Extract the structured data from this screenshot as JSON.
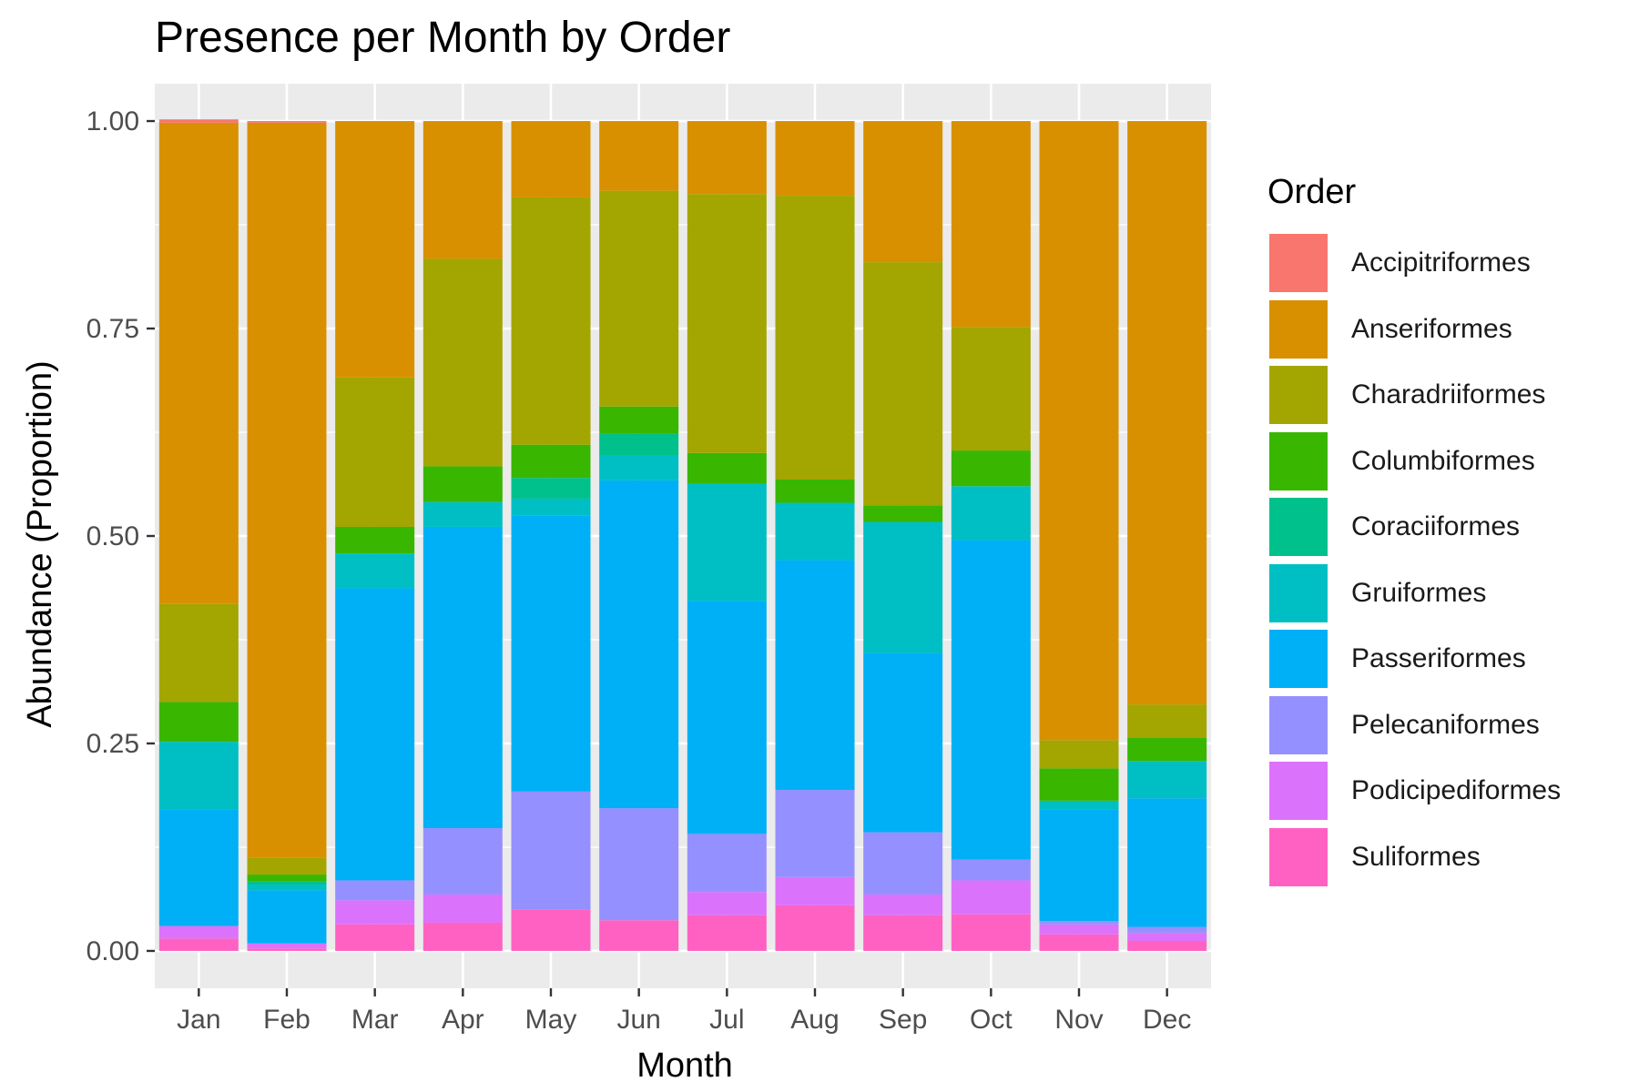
{
  "chart_data": {
    "type": "bar",
    "stacked": true,
    "title": "Presence per Month by Order",
    "xlabel": "Month",
    "ylabel": "Abundance (Proportion)",
    "ylim": [
      -0.045,
      1.045
    ],
    "yticks": [
      "0.00",
      "0.25",
      "0.50",
      "0.75",
      "1.00"
    ],
    "ytick_values": [
      0,
      0.25,
      0.5,
      0.75,
      1
    ],
    "grid": true,
    "legend_position": "right",
    "legend_title": "Order",
    "categories": [
      "Jan",
      "Feb",
      "Mar",
      "Apr",
      "May",
      "Jun",
      "Jul",
      "Aug",
      "Sep",
      "Oct",
      "Nov",
      "Dec"
    ],
    "series": [
      {
        "name": "Suliformes",
        "color": "#FF61C3",
        "values": [
          0.015,
          0.003,
          0.032,
          0.034,
          0.05,
          0.037,
          0.043,
          0.055,
          0.043,
          0.044,
          0.02,
          0.012
        ]
      },
      {
        "name": "Podicipediformes",
        "color": "#DB72FB",
        "values": [
          0.015,
          0.006,
          0.029,
          0.034,
          0.0,
          0.0,
          0.028,
          0.034,
          0.025,
          0.041,
          0.012,
          0.01
        ]
      },
      {
        "name": "Pelecaniformes",
        "color": "#9590FF",
        "values": [
          0.0,
          0.0,
          0.024,
          0.08,
          0.142,
          0.135,
          0.07,
          0.105,
          0.075,
          0.025,
          0.004,
          0.007
        ]
      },
      {
        "name": "Passeriformes",
        "color": "#00B0F6",
        "values": [
          0.14,
          0.064,
          0.352,
          0.363,
          0.333,
          0.395,
          0.281,
          0.277,
          0.216,
          0.385,
          0.134,
          0.155
        ]
      },
      {
        "name": "Gruiformes",
        "color": "#00BFC4",
        "values": [
          0.082,
          0.007,
          0.042,
          0.03,
          0.02,
          0.03,
          0.141,
          0.069,
          0.158,
          0.065,
          0.011,
          0.045
        ]
      },
      {
        "name": "Coraciiformes",
        "color": "#00C08B",
        "values": [
          0.0,
          0.004,
          0.0,
          0.0,
          0.025,
          0.026,
          0.0,
          0.0,
          0.0,
          0.0,
          0.0,
          0.0
        ]
      },
      {
        "name": "Columbiformes",
        "color": "#39B600",
        "values": [
          0.048,
          0.008,
          0.032,
          0.043,
          0.04,
          0.033,
          0.037,
          0.028,
          0.02,
          0.043,
          0.039,
          0.028
        ]
      },
      {
        "name": "Charadriiformes",
        "color": "#A3A500",
        "values": [
          0.118,
          0.02,
          0.18,
          0.25,
          0.298,
          0.26,
          0.312,
          0.342,
          0.293,
          0.149,
          0.034,
          0.04
        ]
      },
      {
        "name": "Anseriformes",
        "color": "#D89000",
        "values": [
          0.58,
          0.886,
          0.309,
          0.166,
          0.092,
          0.084,
          0.088,
          0.09,
          0.17,
          0.248,
          0.746,
          0.703
        ]
      },
      {
        "name": "Accipitriformes",
        "color": "#F8766D",
        "values": [
          0.004,
          0.002,
          0.0,
          0.0,
          0.0,
          0.0,
          0.0,
          0.0,
          0.0,
          0.0,
          0.0,
          0.0
        ]
      }
    ]
  },
  "legend_items": [
    {
      "name": "Accipitriformes",
      "color": "#F8766D"
    },
    {
      "name": "Anseriformes",
      "color": "#D89000"
    },
    {
      "name": "Charadriiformes",
      "color": "#A3A500"
    },
    {
      "name": "Columbiformes",
      "color": "#39B600"
    },
    {
      "name": "Coraciiformes",
      "color": "#00C08B"
    },
    {
      "name": "Gruiformes",
      "color": "#00BFC4"
    },
    {
      "name": "Passeriformes",
      "color": "#00B0F6"
    },
    {
      "name": "Pelecaniformes",
      "color": "#9590FF"
    },
    {
      "name": "Podicipediformes",
      "color": "#DB72FB"
    },
    {
      "name": "Suliformes",
      "color": "#FF61C3"
    }
  ],
  "colors": {
    "panel_background": "#EBEBEB",
    "grid": "#FFFFFF",
    "axis_text": "#4D4D4D"
  }
}
